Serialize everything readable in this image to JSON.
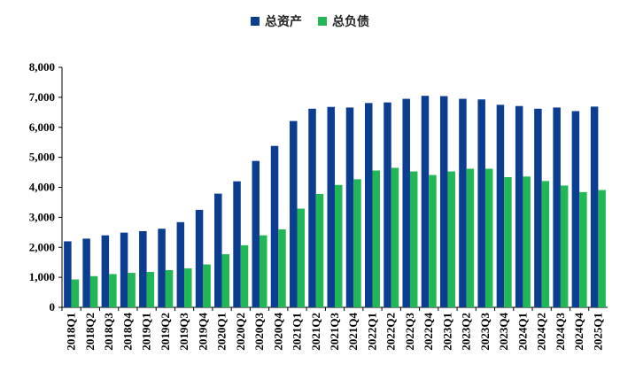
{
  "legend": {
    "series0": "总资产",
    "series1": "总负债"
  },
  "colors": {
    "series0": "#0b3d91",
    "series1": "#22b755"
  },
  "chart_data": {
    "type": "bar",
    "title": "",
    "xlabel": "",
    "ylabel": "",
    "ylim": [
      0,
      8000
    ],
    "yticks": [
      "0",
      "1,000",
      "2,000",
      "3,000",
      "4,000",
      "5,000",
      "6,000",
      "7,000",
      "8,000"
    ],
    "grid": false,
    "legend_position": "top-center",
    "categories": [
      "2018Q1",
      "2018Q2",
      "2018Q3",
      "2018Q4",
      "2019Q1",
      "2019Q2",
      "2019Q3",
      "2019Q4",
      "2020Q1",
      "2020Q2",
      "2020Q3",
      "2020Q4",
      "2021Q1",
      "2021Q2",
      "2021Q3",
      "2021Q4",
      "2022Q1",
      "2022Q2",
      "2022Q3",
      "2022Q4",
      "2023Q1",
      "2023Q2",
      "2023Q3",
      "2023Q4",
      "2024Q1",
      "2024Q2",
      "2024Q3",
      "2024Q4",
      "2025Q1"
    ],
    "series": [
      {
        "name": "总资产",
        "values": [
          2200,
          2290,
          2400,
          2490,
          2540,
          2620,
          2840,
          3250,
          3790,
          4200,
          4880,
          5380,
          6210,
          6620,
          6680,
          6660,
          6810,
          6830,
          6950,
          7050,
          7040,
          6950,
          6930,
          6750,
          6710,
          6620,
          6660,
          6540,
          6690
        ]
      },
      {
        "name": "总负债",
        "values": [
          930,
          1040,
          1110,
          1150,
          1180,
          1240,
          1300,
          1430,
          1770,
          2070,
          2400,
          2600,
          3290,
          3780,
          4080,
          4270,
          4560,
          4650,
          4530,
          4410,
          4530,
          4620,
          4620,
          4340,
          4360,
          4210,
          4060,
          3840,
          3910
        ]
      }
    ]
  }
}
